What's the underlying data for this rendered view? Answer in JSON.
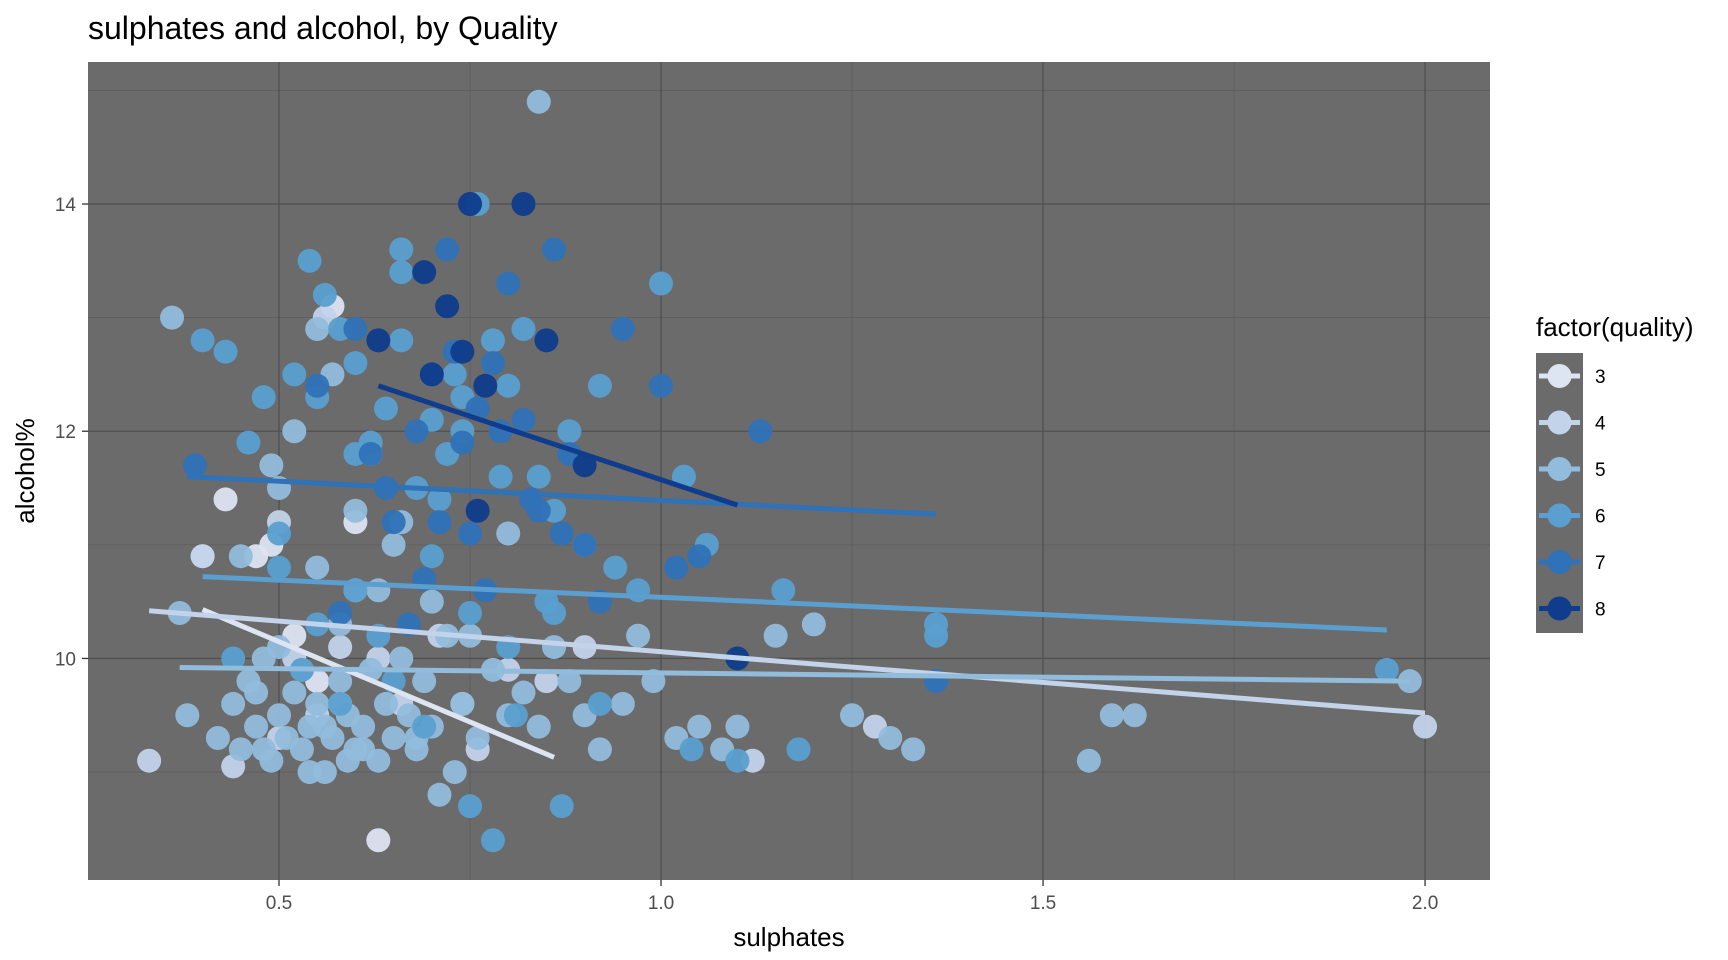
{
  "chart_data": {
    "type": "scatter",
    "title": "sulphates and alcohol, by Quality",
    "xlabel": "sulphates",
    "ylabel": "alcohol%",
    "xlim": [
      0.25,
      2.085
    ],
    "ylim": [
      8.05,
      15.25
    ],
    "x_ticks": [
      0.5,
      1.0,
      1.5,
      2.0
    ],
    "x_tick_labels": [
      "0.5",
      "1.0",
      "1.5",
      "2.0"
    ],
    "y_ticks": [
      10,
      12,
      14
    ],
    "y_tick_labels": [
      "10",
      "12",
      "14"
    ],
    "grid": true,
    "panel_background": "#6b6b6b",
    "legend": {
      "title": "factor(quality)",
      "position": "right",
      "entries": [
        "3",
        "4",
        "5",
        "6",
        "7",
        "8"
      ]
    },
    "series": [
      {
        "name": "3",
        "color": "#dde4f2",
        "x": [
          0.47,
          0.49,
          0.52,
          0.55,
          0.57,
          0.6,
          0.63,
          0.4,
          0.58,
          0.43
        ],
        "y": [
          10.9,
          11.0,
          10.2,
          9.8,
          13.1,
          11.2,
          8.4,
          10.9,
          9.6,
          11.4
        ],
        "trend": [
          [
            0.4,
            10.43
          ],
          [
            0.86,
            9.13
          ]
        ]
      },
      {
        "name": "4",
        "color": "#c3d3ea",
        "x": [
          0.33,
          0.44,
          0.5,
          0.52,
          0.55,
          0.56,
          0.58,
          0.63,
          0.66,
          0.71,
          0.76,
          0.8,
          0.85,
          1.12,
          1.28,
          2.0,
          0.4,
          0.9,
          0.6,
          0.74,
          0.5
        ],
        "y": [
          9.1,
          9.05,
          11.2,
          10.0,
          9.5,
          13.0,
          10.1,
          10.0,
          9.6,
          10.2,
          9.2,
          9.9,
          9.8,
          9.1,
          9.4,
          9.4,
          10.9,
          10.1,
          10.6,
          9.6,
          9.3
        ],
        "trend": [
          [
            0.33,
            10.42
          ],
          [
            2.0,
            9.52
          ]
        ]
      },
      {
        "name": "5",
        "color": "#92bcdc",
        "x": [
          0.36,
          0.38,
          0.42,
          0.44,
          0.45,
          0.46,
          0.47,
          0.48,
          0.49,
          0.5,
          0.51,
          0.52,
          0.53,
          0.54,
          0.55,
          0.56,
          0.57,
          0.58,
          0.59,
          0.6,
          0.61,
          0.62,
          0.63,
          0.64,
          0.65,
          0.66,
          0.67,
          0.68,
          0.69,
          0.7,
          0.72,
          0.74,
          0.76,
          0.78,
          0.8,
          0.82,
          0.84,
          0.86,
          0.88,
          0.9,
          0.92,
          0.95,
          0.97,
          0.99,
          1.02,
          1.05,
          1.08,
          1.1,
          1.15,
          1.2,
          1.25,
          1.3,
          1.33,
          1.56,
          1.59,
          1.62,
          1.98,
          0.37,
          0.45,
          0.5,
          0.55,
          0.6,
          0.65,
          0.7,
          0.75,
          0.8,
          0.84,
          0.52,
          0.57,
          0.62,
          0.48,
          0.54,
          0.59,
          0.68,
          0.73,
          0.47,
          0.53,
          0.58,
          0.63,
          0.5,
          0.56,
          0.61,
          0.66,
          0.71,
          0.49,
          0.55
        ],
        "y": [
          13.0,
          9.5,
          9.3,
          9.6,
          9.2,
          9.8,
          9.4,
          10.0,
          9.1,
          9.5,
          9.3,
          9.7,
          9.2,
          9.4,
          9.6,
          9.0,
          9.3,
          9.8,
          9.5,
          9.2,
          9.4,
          9.9,
          9.1,
          9.6,
          9.3,
          10.0,
          9.5,
          9.2,
          9.8,
          9.4,
          10.2,
          9.6,
          9.3,
          9.9,
          9.5,
          9.7,
          9.4,
          10.1,
          9.8,
          9.5,
          9.2,
          9.6,
          10.2,
          9.8,
          9.3,
          9.4,
          9.2,
          9.4,
          10.2,
          10.3,
          9.5,
          9.3,
          9.2,
          9.1,
          9.5,
          9.5,
          9.8,
          10.4,
          10.9,
          11.5,
          10.8,
          11.3,
          11.0,
          10.5,
          10.2,
          11.1,
          14.9,
          12.0,
          12.5,
          11.8,
          9.2,
          9.0,
          9.1,
          9.3,
          9.0,
          9.7,
          9.9,
          10.3,
          10.6,
          10.1,
          9.4,
          9.2,
          11.2,
          8.8,
          11.7,
          12.9
        ],
        "trend": [
          [
            0.37,
            9.92
          ],
          [
            1.98,
            9.8
          ]
        ]
      },
      {
        "name": "6",
        "color": "#5a9fd0",
        "x": [
          0.4,
          0.43,
          0.46,
          0.48,
          0.5,
          0.52,
          0.54,
          0.56,
          0.58,
          0.6,
          0.62,
          0.64,
          0.66,
          0.68,
          0.7,
          0.72,
          0.74,
          0.76,
          0.78,
          0.8,
          0.82,
          0.84,
          0.86,
          0.88,
          0.9,
          0.92,
          0.94,
          0.97,
          1.0,
          1.03,
          1.06,
          1.1,
          1.16,
          1.18,
          1.36,
          1.36,
          1.95,
          0.44,
          0.5,
          0.55,
          0.6,
          0.65,
          0.7,
          0.75,
          0.8,
          0.85,
          0.55,
          0.6,
          0.66,
          0.73,
          0.79,
          0.53,
          0.58,
          0.63,
          0.69,
          0.75,
          0.81,
          0.87,
          0.92,
          1.04,
          0.78,
          0.66,
          0.71,
          0.86,
          0.74
        ],
        "y": [
          12.8,
          12.7,
          11.9,
          12.3,
          10.8,
          12.5,
          13.5,
          13.2,
          12.9,
          12.6,
          11.9,
          12.2,
          13.6,
          11.5,
          12.1,
          11.8,
          12.3,
          14.0,
          12.8,
          12.4,
          12.9,
          11.6,
          11.3,
          12.0,
          11.0,
          12.4,
          10.8,
          10.6,
          13.3,
          11.6,
          11.0,
          9.1,
          10.6,
          9.2,
          10.3,
          10.2,
          9.9,
          10.0,
          11.1,
          10.3,
          10.6,
          9.8,
          10.9,
          10.4,
          10.1,
          10.5,
          12.3,
          11.8,
          13.4,
          12.5,
          11.6,
          9.9,
          9.6,
          10.2,
          9.4,
          8.7,
          9.5,
          8.7,
          9.6,
          9.2,
          8.4,
          12.8,
          11.4,
          10.4,
          12.0
        ],
        "trend": [
          [
            0.4,
            10.72
          ],
          [
            1.95,
            10.25
          ]
        ]
      },
      {
        "name": "7",
        "color": "#2f72b8",
        "x": [
          0.39,
          0.55,
          0.6,
          0.62,
          0.65,
          0.68,
          0.7,
          0.72,
          0.74,
          0.76,
          0.78,
          0.8,
          0.82,
          0.84,
          0.86,
          0.88,
          0.9,
          0.92,
          0.95,
          1.0,
          1.02,
          1.05,
          1.13,
          1.36,
          0.64,
          0.73,
          0.79,
          0.87,
          0.67,
          0.71,
          0.77,
          0.83,
          0.58,
          0.69,
          0.75
        ],
        "y": [
          11.7,
          12.4,
          12.9,
          11.8,
          11.2,
          12.0,
          12.5,
          13.6,
          11.9,
          12.2,
          12.6,
          13.3,
          12.1,
          11.3,
          13.6,
          11.8,
          11.0,
          10.5,
          12.9,
          12.4,
          10.8,
          10.9,
          12.0,
          9.8,
          11.5,
          12.7,
          12.0,
          11.1,
          10.3,
          11.2,
          10.6,
          11.4,
          10.4,
          10.7,
          11.1
        ],
        "trend": [
          [
            0.38,
            11.6
          ],
          [
            1.36,
            11.27
          ]
        ]
      },
      {
        "name": "8",
        "color": "#0f3c8c",
        "x": [
          0.63,
          0.69,
          0.7,
          0.72,
          0.74,
          0.75,
          0.76,
          0.77,
          0.82,
          0.85,
          0.9,
          1.1
        ],
        "y": [
          12.8,
          13.4,
          12.5,
          13.1,
          12.7,
          14.0,
          11.3,
          12.4,
          14.0,
          12.8,
          11.7,
          10.0
        ],
        "trend": [
          [
            0.63,
            12.4
          ],
          [
            1.1,
            11.35
          ]
        ]
      }
    ]
  }
}
